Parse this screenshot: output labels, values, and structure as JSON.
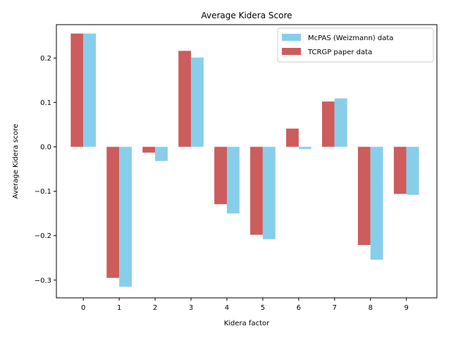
{
  "chart_data": {
    "type": "bar",
    "title": "Average Kidera Score",
    "xlabel": "Kidera factor",
    "ylabel": "Average Kidera score",
    "categories": [
      "0",
      "1",
      "2",
      "3",
      "4",
      "5",
      "6",
      "7",
      "8",
      "9"
    ],
    "series": [
      {
        "name": "TCRGP paper data",
        "color": "#cd5c5c",
        "values": [
          0.255,
          -0.295,
          -0.013,
          0.216,
          -0.129,
          -0.198,
          0.041,
          0.102,
          -0.221,
          -0.106
        ]
      },
      {
        "name": "McPAS (Weizmann) data",
        "color": "#87ceeb",
        "values": [
          0.255,
          -0.315,
          -0.032,
          0.201,
          -0.15,
          -0.208,
          -0.005,
          0.109,
          -0.254,
          -0.108
        ]
      }
    ],
    "legend_order": [
      1,
      0
    ],
    "legend_position": "top-right",
    "ylim": [
      -0.34,
      0.275
    ],
    "yticks": [
      -0.3,
      -0.2,
      -0.1,
      0.0,
      0.1,
      0.2
    ],
    "ytick_labels": [
      "−0.3",
      "−0.2",
      "−0.1",
      "0.0",
      "0.1",
      "0.2"
    ],
    "xlim": [
      -0.75,
      9.85
    ],
    "grid": false
  }
}
